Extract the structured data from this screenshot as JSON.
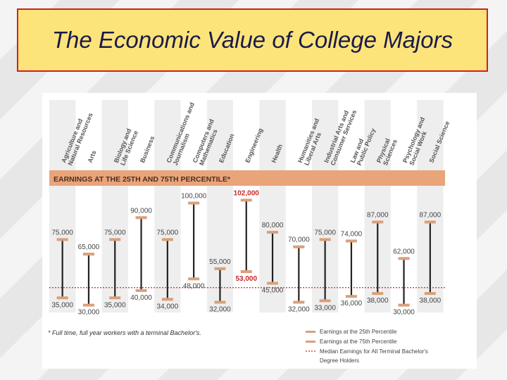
{
  "slide": {
    "title": "The Economic Value of College Majors"
  },
  "chart_data": {
    "type": "range",
    "section_title": "EARNINGS AT THE 25TH AND 75TH PERCENTILE*",
    "categories": [
      "Agriculture and Natural Resources",
      "Arts",
      "Biology and Life Science",
      "Business",
      "Communications and Journalism",
      "Computers and Mathematics",
      "Education",
      "Engineering",
      "Health",
      "Humanities and Liberal Arts",
      "Industrial Arts and Consumer Services",
      "Law and Public Policy",
      "Physical Sciences",
      "Psychology and Social Work",
      "Social Science"
    ],
    "series": [
      {
        "name": "Earnings at the 25th Percentile",
        "values": [
          35000,
          30000,
          35000,
          40000,
          34000,
          48000,
          32000,
          53000,
          45000,
          32000,
          33000,
          36000,
          38000,
          30000,
          38000
        ],
        "labels": [
          "35,000",
          "30,000",
          "35,000",
          "40,000",
          "34,000",
          "48,000",
          "32,000",
          "53,000",
          "45,000",
          "32,000",
          "33,000",
          "36,000",
          "38,000",
          "30,000",
          "38,000"
        ]
      },
      {
        "name": "Earnings at the 75th Percentile",
        "values": [
          75000,
          65000,
          75000,
          90000,
          75000,
          100000,
          55000,
          102000,
          80000,
          70000,
          75000,
          74000,
          87000,
          62000,
          87000
        ],
        "labels": [
          "75,000",
          "65,000",
          "75,000",
          "90,000",
          "75,000",
          "100,000",
          "55,000",
          "102,000",
          "80,000",
          "70,000",
          "75,000",
          "74,000",
          "87,000",
          "62,000",
          "87,000"
        ]
      }
    ],
    "highlight_index": 7,
    "median_value": 42000,
    "ylim": [
      25000,
      108000
    ],
    "footnote": "* Full time, full year workers with a terminal Bachelor's.",
    "legend": [
      {
        "label": "Earnings at the 25th Percentile",
        "marker": "tick"
      },
      {
        "label": "Earnings at the 75th Percentile",
        "marker": "tick"
      },
      {
        "label": "Median Earnings for All Terminal Bachelor's Degree Holders",
        "marker": "dotted"
      }
    ],
    "legend_position": "bottom-right",
    "colors": {
      "header": "#e9a47a",
      "tick": "#d9a07a",
      "range_line": "#222222",
      "highlight": "#c62828",
      "median": "#c62828",
      "column": "#eeeeee",
      "text": "#444444"
    }
  }
}
